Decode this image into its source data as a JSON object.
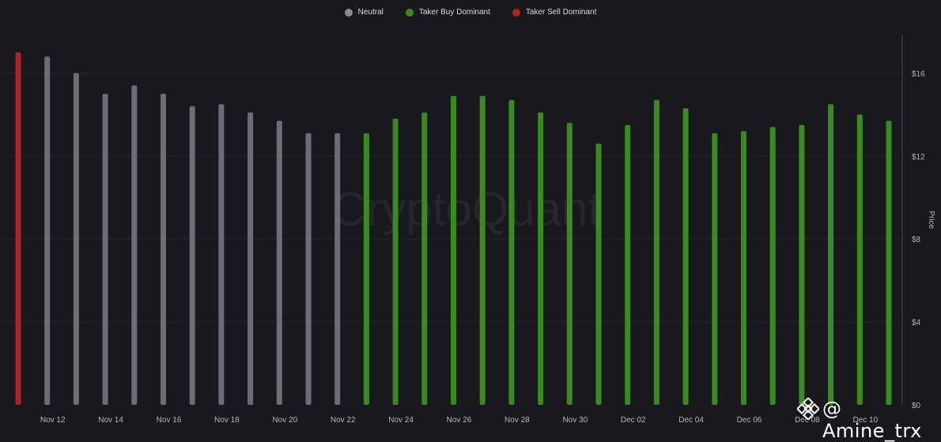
{
  "legend": {
    "items": [
      {
        "label": "Neutral",
        "color": "#8a8892"
      },
      {
        "label": "Taker Buy Dominant",
        "color": "#3a8a22"
      },
      {
        "label": "Taker Sell Dominant",
        "color": "#b02222"
      }
    ]
  },
  "watermark": {
    "brand": "CryptoQuant",
    "handle": "@ Amine_trx"
  },
  "colors": {
    "background": "#19181d",
    "grid": "#26252b",
    "neutral": "#6e6c76",
    "buy": "#3a8a22",
    "sell": "#b02222",
    "axis_text": "#b5b5bb"
  },
  "chart_data": {
    "type": "bar",
    "ylabel": "Price",
    "ylim": [
      0,
      18
    ],
    "yticks": [
      "$0",
      "$4",
      "$8",
      "$12",
      "$16"
    ],
    "ytick_values": [
      0,
      4,
      8,
      12,
      16
    ],
    "xtick_labels": [
      "Nov 12",
      "Nov 14",
      "Nov 16",
      "Nov 18",
      "Nov 20",
      "Nov 22",
      "Nov 24",
      "Nov 26",
      "Nov 28",
      "Nov 30",
      "Dec 02",
      "Dec 04",
      "Dec 06",
      "Dec 08",
      "Dec 10"
    ],
    "categories": [
      "Nov 11",
      "Nov 12",
      "Nov 13",
      "Nov 14",
      "Nov 15",
      "Nov 16",
      "Nov 17",
      "Nov 18",
      "Nov 19",
      "Nov 20",
      "Nov 21",
      "Nov 22",
      "Nov 23",
      "Nov 24",
      "Nov 25",
      "Nov 26",
      "Nov 27",
      "Nov 28",
      "Nov 29",
      "Nov 30",
      "Dec 01",
      "Dec 02",
      "Dec 03",
      "Dec 04",
      "Dec 05",
      "Dec 06",
      "Dec 07",
      "Dec 08",
      "Dec 09",
      "Dec 10",
      "Dec 11"
    ],
    "values": [
      17.0,
      16.8,
      16.0,
      15.0,
      15.4,
      15.0,
      14.4,
      14.5,
      14.1,
      13.7,
      13.1,
      13.1,
      13.1,
      13.8,
      14.1,
      14.9,
      14.9,
      14.7,
      14.1,
      13.6,
      12.6,
      13.5,
      14.7,
      14.3,
      13.1,
      13.2,
      13.4,
      13.5,
      14.5,
      14.0,
      13.7
    ],
    "classes": [
      "sell",
      "neutral",
      "neutral",
      "neutral",
      "neutral",
      "neutral",
      "neutral",
      "neutral",
      "neutral",
      "neutral",
      "neutral",
      "neutral",
      "buy",
      "buy",
      "buy",
      "buy",
      "buy",
      "buy",
      "buy",
      "buy",
      "buy",
      "buy",
      "buy",
      "buy",
      "buy",
      "buy",
      "buy",
      "buy",
      "buy",
      "buy",
      "buy"
    ],
    "grid": true,
    "legend_position": "top-center"
  }
}
